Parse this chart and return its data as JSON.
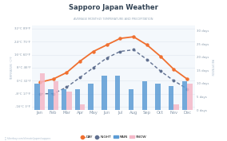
{
  "title": "Sapporo Japan Weather",
  "subtitle": "AVERAGE MONTHLY TEMPERATURE AND PRECIPITATION",
  "months": [
    "Jan",
    "Feb",
    "Mar",
    "Apr",
    "May",
    "Jun",
    "Jul",
    "Aug",
    "Sep",
    "Oct",
    "Nov",
    "Dec"
  ],
  "day_temp": [
    -1,
    1,
    5,
    12,
    18,
    22,
    26,
    27,
    22,
    15,
    7,
    1
  ],
  "night_temp": [
    -8,
    -8,
    -4,
    2,
    8,
    14,
    18,
    19,
    13,
    6,
    0,
    -5
  ],
  "rain_days": [
    10,
    8,
    8,
    8,
    10,
    13,
    13,
    8,
    11,
    10,
    9,
    11
  ],
  "snow_days": [
    14,
    11,
    7,
    2,
    0,
    0,
    0,
    0,
    0,
    0,
    2,
    10
  ],
  "y_left_ticks": [
    -16,
    -8,
    0,
    8,
    16,
    24,
    32
  ],
  "y_left_labels": [
    "-16°C 3°F",
    "-8°C 17°F",
    "0°C 32°F",
    "8°C 46°F",
    "16°C 60°F",
    "24°C 75°F",
    "32°C 89°F"
  ],
  "y_right_ticks": [
    0,
    5,
    10,
    15,
    20,
    25,
    30
  ],
  "y_right_labels": [
    "0 days",
    "5 days",
    "10 days",
    "15 days",
    "20 days",
    "25 days",
    "30 days"
  ],
  "day_color": "#f07030",
  "night_color": "#607090",
  "rain_color": "#5b9bd5",
  "snow_color": "#f4b8c8",
  "bg_color": "#ffffff",
  "plot_bg": "#f4f8fc",
  "grid_color": "#e8eef4",
  "title_color": "#334455",
  "subtitle_color": "#9aabbb",
  "tick_color": "#8899aa",
  "ylim_left": [
    -18,
    34
  ],
  "ylim_right": [
    0,
    32
  ],
  "bar_width": 0.38,
  "footer": "hikerbay.com/climate/japan/sapporo"
}
